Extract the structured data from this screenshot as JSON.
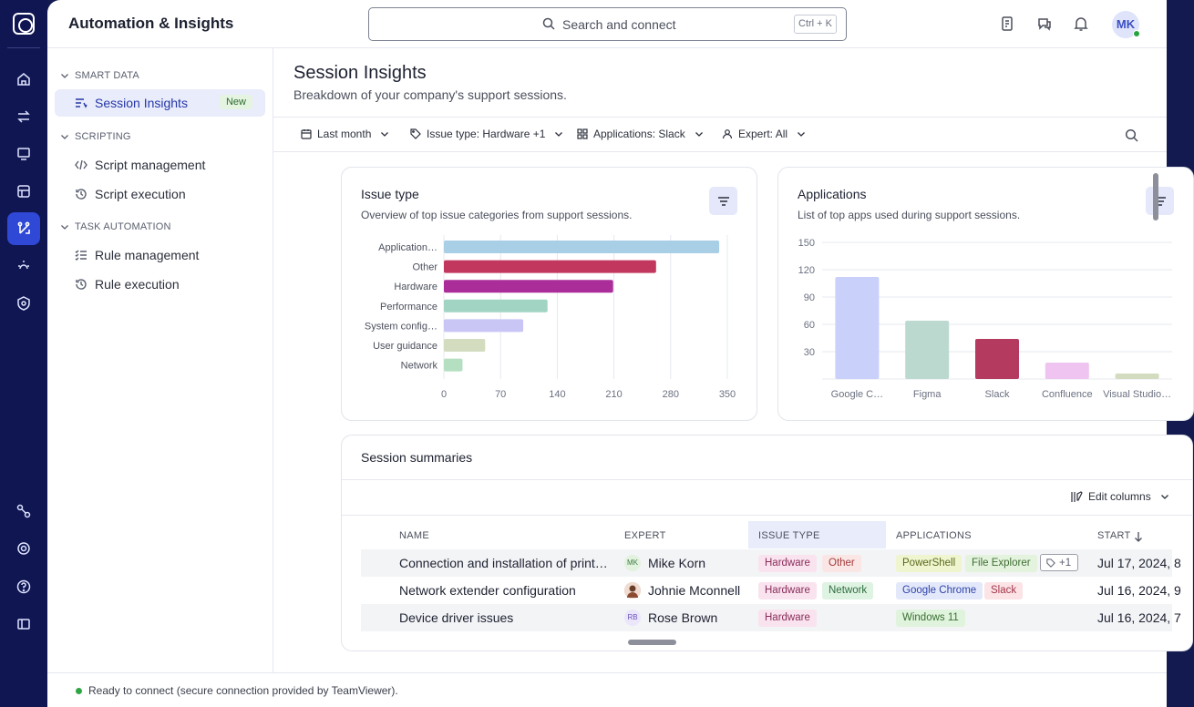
{
  "header": {
    "title": "Automation & Insights",
    "search_placeholder": "Search and connect",
    "shortcut": "Ctrl + K",
    "user_initials": "MK"
  },
  "sidebar": {
    "sections": [
      {
        "label": "SMART DATA"
      },
      {
        "label": "SCRIPTING"
      },
      {
        "label": "TASK AUTOMATION"
      }
    ],
    "items": [
      {
        "label": "Session Insights",
        "badge": "New"
      },
      {
        "label": "Script management"
      },
      {
        "label": "Script execution"
      },
      {
        "label": "Rule management"
      },
      {
        "label": "Rule execution"
      }
    ]
  },
  "page": {
    "title": "Session Insights",
    "subtitle": "Breakdown of your company's support sessions."
  },
  "filters": [
    {
      "label": "Last month"
    },
    {
      "label": "Issue type: Hardware +1"
    },
    {
      "label": "Applications: Slack"
    },
    {
      "label": "Expert: All"
    }
  ],
  "issue_card": {
    "title": "Issue type",
    "subtitle": "Overview of top issue categories from support sessions."
  },
  "apps_card": {
    "title": "Applications",
    "subtitle": "List of top apps used during support sessions."
  },
  "chart_data": [
    {
      "type": "bar",
      "orientation": "horizontal",
      "categories": [
        "Application…",
        "Other",
        "Hardware",
        "Performance",
        "System config…",
        "User guidance",
        "Network"
      ],
      "values": [
        340,
        262,
        209,
        128,
        98,
        51,
        23
      ],
      "xlim": [
        0,
        350
      ],
      "xticks": [
        "0",
        "70",
        "140",
        "210",
        "280",
        "350"
      ],
      "colors": [
        "#a9cfe6",
        "#c2375e",
        "#ab2d9a",
        "#a2d4c4",
        "#c9c6f5",
        "#d3dcbe",
        "#b5dfc1"
      ]
    },
    {
      "type": "bar",
      "orientation": "vertical",
      "categories": [
        "Google C…",
        "Figma",
        "Slack",
        "Confluence",
        "Visual Studio…"
      ],
      "values": [
        112,
        64,
        44,
        18,
        6
      ],
      "ylim": [
        0,
        150
      ],
      "yticks": [
        "150",
        "120",
        "90",
        "60",
        "30"
      ],
      "colors": [
        "#c9d1fa",
        "#bcd9cf",
        "#b43a5f",
        "#efc4f0",
        "#d3dcbe"
      ]
    }
  ],
  "summaries": {
    "title": "Session summaries",
    "edit_columns": "Edit columns",
    "columns": {
      "name": "NAME",
      "expert": "EXPERT",
      "issue_type": "ISSUE TYPE",
      "applications": "APPLICATIONS",
      "start": "START"
    },
    "rows": [
      {
        "name": "Connection and installation of print…",
        "expert_initials": "MK",
        "expert": "Mike Korn",
        "issues": [
          "Hardware",
          "Other"
        ],
        "apps": [
          "PowerShell",
          "File Explorer"
        ],
        "more": "+1",
        "start": "Jul 17, 2024, 8"
      },
      {
        "name": "Network extender configuration",
        "expert_initials": "",
        "expert": "Johnie Mconnell",
        "issues": [
          "Hardware",
          "Network"
        ],
        "apps": [
          "Google Chrome",
          "Slack"
        ],
        "start": "Jul 16, 2024, 9"
      },
      {
        "name": "Device driver issues",
        "expert_initials": "RB",
        "expert": "Rose Brown",
        "issues": [
          "Hardware"
        ],
        "apps": [
          "Windows 11"
        ],
        "start": "Jul 16, 2024, 7"
      }
    ]
  },
  "status": {
    "text": "Ready to connect (secure connection provided by TeamViewer)."
  }
}
